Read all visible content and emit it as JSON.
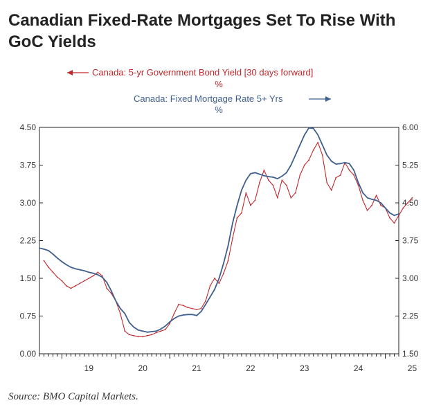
{
  "title": "Canadian Fixed-Rate Mortgages Set To Rise With GoC Yields",
  "source": "Source: BMO Capital Markets.",
  "chart_data": {
    "type": "line",
    "legend_placement": "top-center",
    "grid": false,
    "x_axis": {
      "tick_labels": [
        "19",
        "20",
        "21",
        "22",
        "23",
        "24",
        "25"
      ],
      "range": [
        "2018-08",
        "2025-04"
      ]
    },
    "y_left": {
      "range": [
        0,
        4.5
      ],
      "tick_labels": [
        "4.50",
        "3.75",
        "3.00",
        "2.25",
        "1.50",
        "0.75",
        "0.00"
      ]
    },
    "y_right": {
      "range": [
        1.5,
        6.0
      ],
      "tick_labels": [
        "6.00",
        "5.25",
        "4.50",
        "3.75",
        "3.00",
        "2.25",
        "1.50"
      ]
    },
    "series": [
      {
        "name": "Canada: 5-yr Government Bond Yield [30 days forward]",
        "unit": "%",
        "axis": "left",
        "color": "#c0282d",
        "points": [
          [
            "2018-09",
            1.85
          ],
          [
            "2018-10",
            1.72
          ],
          [
            "2018-11",
            1.62
          ],
          [
            "2018-12",
            1.52
          ],
          [
            "2019-01",
            1.45
          ],
          [
            "2019-02",
            1.35
          ],
          [
            "2019-03",
            1.3
          ],
          [
            "2019-04",
            1.35
          ],
          [
            "2019-05",
            1.4
          ],
          [
            "2019-06",
            1.45
          ],
          [
            "2019-07",
            1.5
          ],
          [
            "2019-08",
            1.55
          ],
          [
            "2019-09",
            1.62
          ],
          [
            "2019-10",
            1.55
          ],
          [
            "2019-11",
            1.3
          ],
          [
            "2019-12",
            1.2
          ],
          [
            "2020-01",
            1.05
          ],
          [
            "2020-02",
            0.8
          ],
          [
            "2020-03",
            0.45
          ],
          [
            "2020-04",
            0.38
          ],
          [
            "2020-05",
            0.36
          ],
          [
            "2020-06",
            0.34
          ],
          [
            "2020-07",
            0.34
          ],
          [
            "2020-08",
            0.36
          ],
          [
            "2020-09",
            0.38
          ],
          [
            "2020-10",
            0.42
          ],
          [
            "2020-11",
            0.45
          ],
          [
            "2020-12",
            0.48
          ],
          [
            "2021-01",
            0.6
          ],
          [
            "2021-02",
            0.8
          ],
          [
            "2021-03",
            0.98
          ],
          [
            "2021-04",
            0.96
          ],
          [
            "2021-05",
            0.92
          ],
          [
            "2021-06",
            0.9
          ],
          [
            "2021-07",
            0.88
          ],
          [
            "2021-08",
            0.9
          ],
          [
            "2021-09",
            1.05
          ],
          [
            "2021-10",
            1.35
          ],
          [
            "2021-11",
            1.5
          ],
          [
            "2021-12",
            1.4
          ],
          [
            "2022-01",
            1.6
          ],
          [
            "2022-02",
            1.85
          ],
          [
            "2022-03",
            2.3
          ],
          [
            "2022-04",
            2.7
          ],
          [
            "2022-05",
            2.8
          ],
          [
            "2022-06",
            3.2
          ],
          [
            "2022-07",
            2.95
          ],
          [
            "2022-08",
            3.05
          ],
          [
            "2022-09",
            3.4
          ],
          [
            "2022-10",
            3.65
          ],
          [
            "2022-11",
            3.45
          ],
          [
            "2022-12",
            3.35
          ],
          [
            "2023-01",
            3.1
          ],
          [
            "2023-02",
            3.45
          ],
          [
            "2023-03",
            3.35
          ],
          [
            "2023-04",
            3.1
          ],
          [
            "2023-05",
            3.2
          ],
          [
            "2023-06",
            3.55
          ],
          [
            "2023-07",
            3.75
          ],
          [
            "2023-08",
            3.85
          ],
          [
            "2023-09",
            4.05
          ],
          [
            "2023-10",
            4.2
          ],
          [
            "2023-11",
            3.95
          ],
          [
            "2023-12",
            3.4
          ],
          [
            "2024-01",
            3.25
          ],
          [
            "2024-02",
            3.5
          ],
          [
            "2024-03",
            3.55
          ],
          [
            "2024-04",
            3.8
          ],
          [
            "2024-05",
            3.65
          ],
          [
            "2024-06",
            3.55
          ],
          [
            "2024-07",
            3.35
          ],
          [
            "2024-08",
            3.05
          ],
          [
            "2024-09",
            2.85
          ],
          [
            "2024-10",
            2.95
          ],
          [
            "2024-11",
            3.15
          ],
          [
            "2024-12",
            2.95
          ],
          [
            "2025-01",
            2.9
          ],
          [
            "2025-02",
            2.7
          ],
          [
            "2025-03",
            2.6
          ],
          [
            "2025-04",
            2.75
          ],
          [
            "2025-05",
            2.9
          ],
          [
            "2025-06",
            3.0
          ],
          [
            "2025-07",
            3.1
          ]
        ]
      },
      {
        "name": "Canada: Fixed Mortgage Rate 5+ Yrs",
        "unit": "%",
        "axis": "right",
        "color": "#3f5f8f",
        "points": [
          [
            "2018-08",
            3.6
          ],
          [
            "2018-09",
            3.58
          ],
          [
            "2018-10",
            3.55
          ],
          [
            "2018-11",
            3.48
          ],
          [
            "2018-12",
            3.4
          ],
          [
            "2019-01",
            3.33
          ],
          [
            "2019-02",
            3.27
          ],
          [
            "2019-03",
            3.22
          ],
          [
            "2019-04",
            3.19
          ],
          [
            "2019-05",
            3.17
          ],
          [
            "2019-06",
            3.15
          ],
          [
            "2019-07",
            3.12
          ],
          [
            "2019-08",
            3.1
          ],
          [
            "2019-09",
            3.07
          ],
          [
            "2019-10",
            3.02
          ],
          [
            "2019-11",
            2.92
          ],
          [
            "2019-12",
            2.75
          ],
          [
            "2020-01",
            2.55
          ],
          [
            "2020-02",
            2.4
          ],
          [
            "2020-03",
            2.3
          ],
          [
            "2020-04",
            2.12
          ],
          [
            "2020-05",
            2.03
          ],
          [
            "2020-06",
            1.97
          ],
          [
            "2020-07",
            1.95
          ],
          [
            "2020-08",
            1.93
          ],
          [
            "2020-09",
            1.94
          ],
          [
            "2020-10",
            1.95
          ],
          [
            "2020-11",
            1.99
          ],
          [
            "2020-12",
            2.05
          ],
          [
            "2021-01",
            2.13
          ],
          [
            "2021-02",
            2.2
          ],
          [
            "2021-03",
            2.25
          ],
          [
            "2021-04",
            2.27
          ],
          [
            "2021-05",
            2.28
          ],
          [
            "2021-06",
            2.28
          ],
          [
            "2021-07",
            2.26
          ],
          [
            "2021-08",
            2.34
          ],
          [
            "2021-09",
            2.48
          ],
          [
            "2021-10",
            2.63
          ],
          [
            "2021-11",
            2.78
          ],
          [
            "2021-12",
            3.0
          ],
          [
            "2022-01",
            3.3
          ],
          [
            "2022-02",
            3.65
          ],
          [
            "2022-03",
            4.1
          ],
          [
            "2022-04",
            4.45
          ],
          [
            "2022-05",
            4.75
          ],
          [
            "2022-06",
            4.95
          ],
          [
            "2022-07",
            5.08
          ],
          [
            "2022-08",
            5.1
          ],
          [
            "2022-09",
            5.07
          ],
          [
            "2022-10",
            5.04
          ],
          [
            "2022-11",
            5.02
          ],
          [
            "2022-12",
            5.01
          ],
          [
            "2023-01",
            4.98
          ],
          [
            "2023-02",
            5.03
          ],
          [
            "2023-03",
            5.1
          ],
          [
            "2023-04",
            5.25
          ],
          [
            "2023-05",
            5.45
          ],
          [
            "2023-06",
            5.65
          ],
          [
            "2023-07",
            5.85
          ],
          [
            "2023-08",
            5.99
          ],
          [
            "2023-09",
            5.98
          ],
          [
            "2023-10",
            5.85
          ],
          [
            "2023-11",
            5.65
          ],
          [
            "2023-12",
            5.45
          ],
          [
            "2024-01",
            5.33
          ],
          [
            "2024-02",
            5.27
          ],
          [
            "2024-03",
            5.28
          ],
          [
            "2024-04",
            5.3
          ],
          [
            "2024-05",
            5.28
          ],
          [
            "2024-06",
            5.15
          ],
          [
            "2024-07",
            4.9
          ],
          [
            "2024-08",
            4.7
          ],
          [
            "2024-09",
            4.6
          ],
          [
            "2024-10",
            4.57
          ],
          [
            "2024-11",
            4.55
          ],
          [
            "2024-12",
            4.5
          ],
          [
            "2025-01",
            4.4
          ],
          [
            "2025-02",
            4.3
          ],
          [
            "2025-03",
            4.25
          ],
          [
            "2025-04",
            4.28
          ]
        ]
      }
    ]
  }
}
